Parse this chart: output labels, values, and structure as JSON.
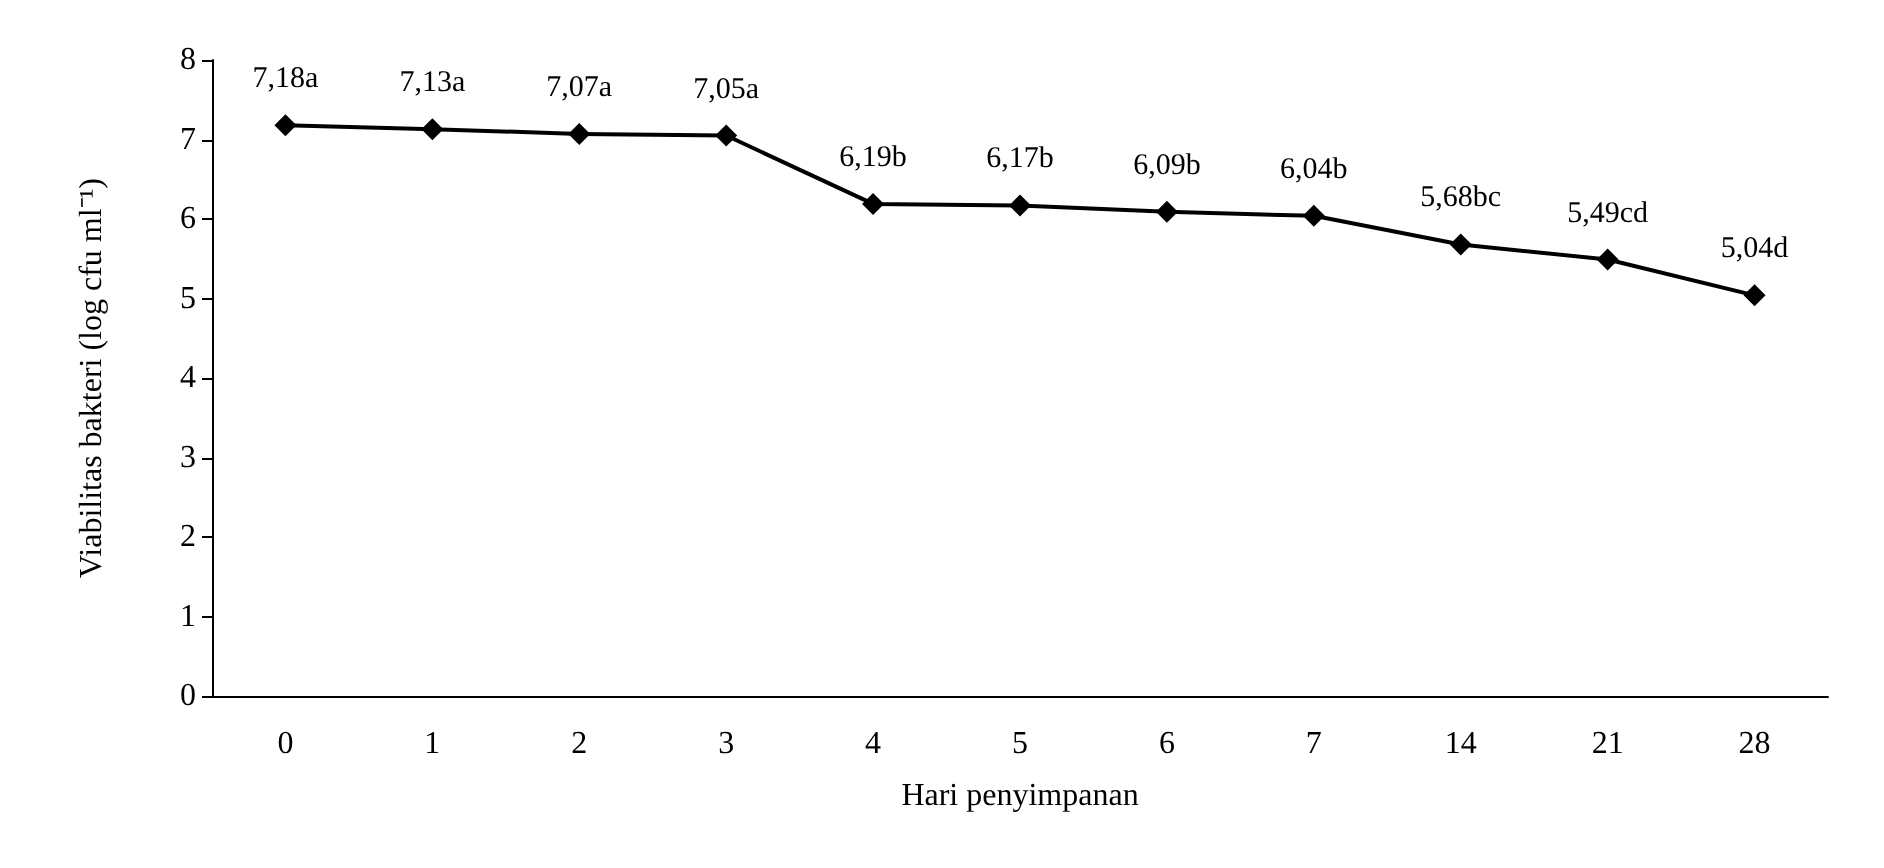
{
  "chart_data": {
    "type": "line",
    "xlabel": "Hari penyimpanan",
    "ylabel": "Viabilitas bakteri (log cfu ml⁻¹)",
    "categories": [
      "0",
      "1",
      "2",
      "3",
      "4",
      "5",
      "6",
      "7",
      "14",
      "21",
      "28"
    ],
    "series": [
      {
        "color": "#000000",
        "values": [
          7.18,
          7.13,
          7.07,
          7.05,
          6.19,
          6.17,
          6.09,
          6.04,
          5.68,
          5.49,
          5.04
        ],
        "value_labels": [
          "7,18a",
          "7,13a",
          "7,07a",
          "7,05a",
          "6,19b",
          "6,17b",
          "6,09b",
          "6,04b",
          "5,68bc",
          "5,49cd",
          "5,04d"
        ]
      }
    ],
    "ylim": [
      0,
      8
    ],
    "yticks": [
      0,
      1,
      2,
      3,
      4,
      5,
      6,
      7,
      8
    ],
    "grid": false,
    "marker": "diamond",
    "line_style": "solid"
  }
}
